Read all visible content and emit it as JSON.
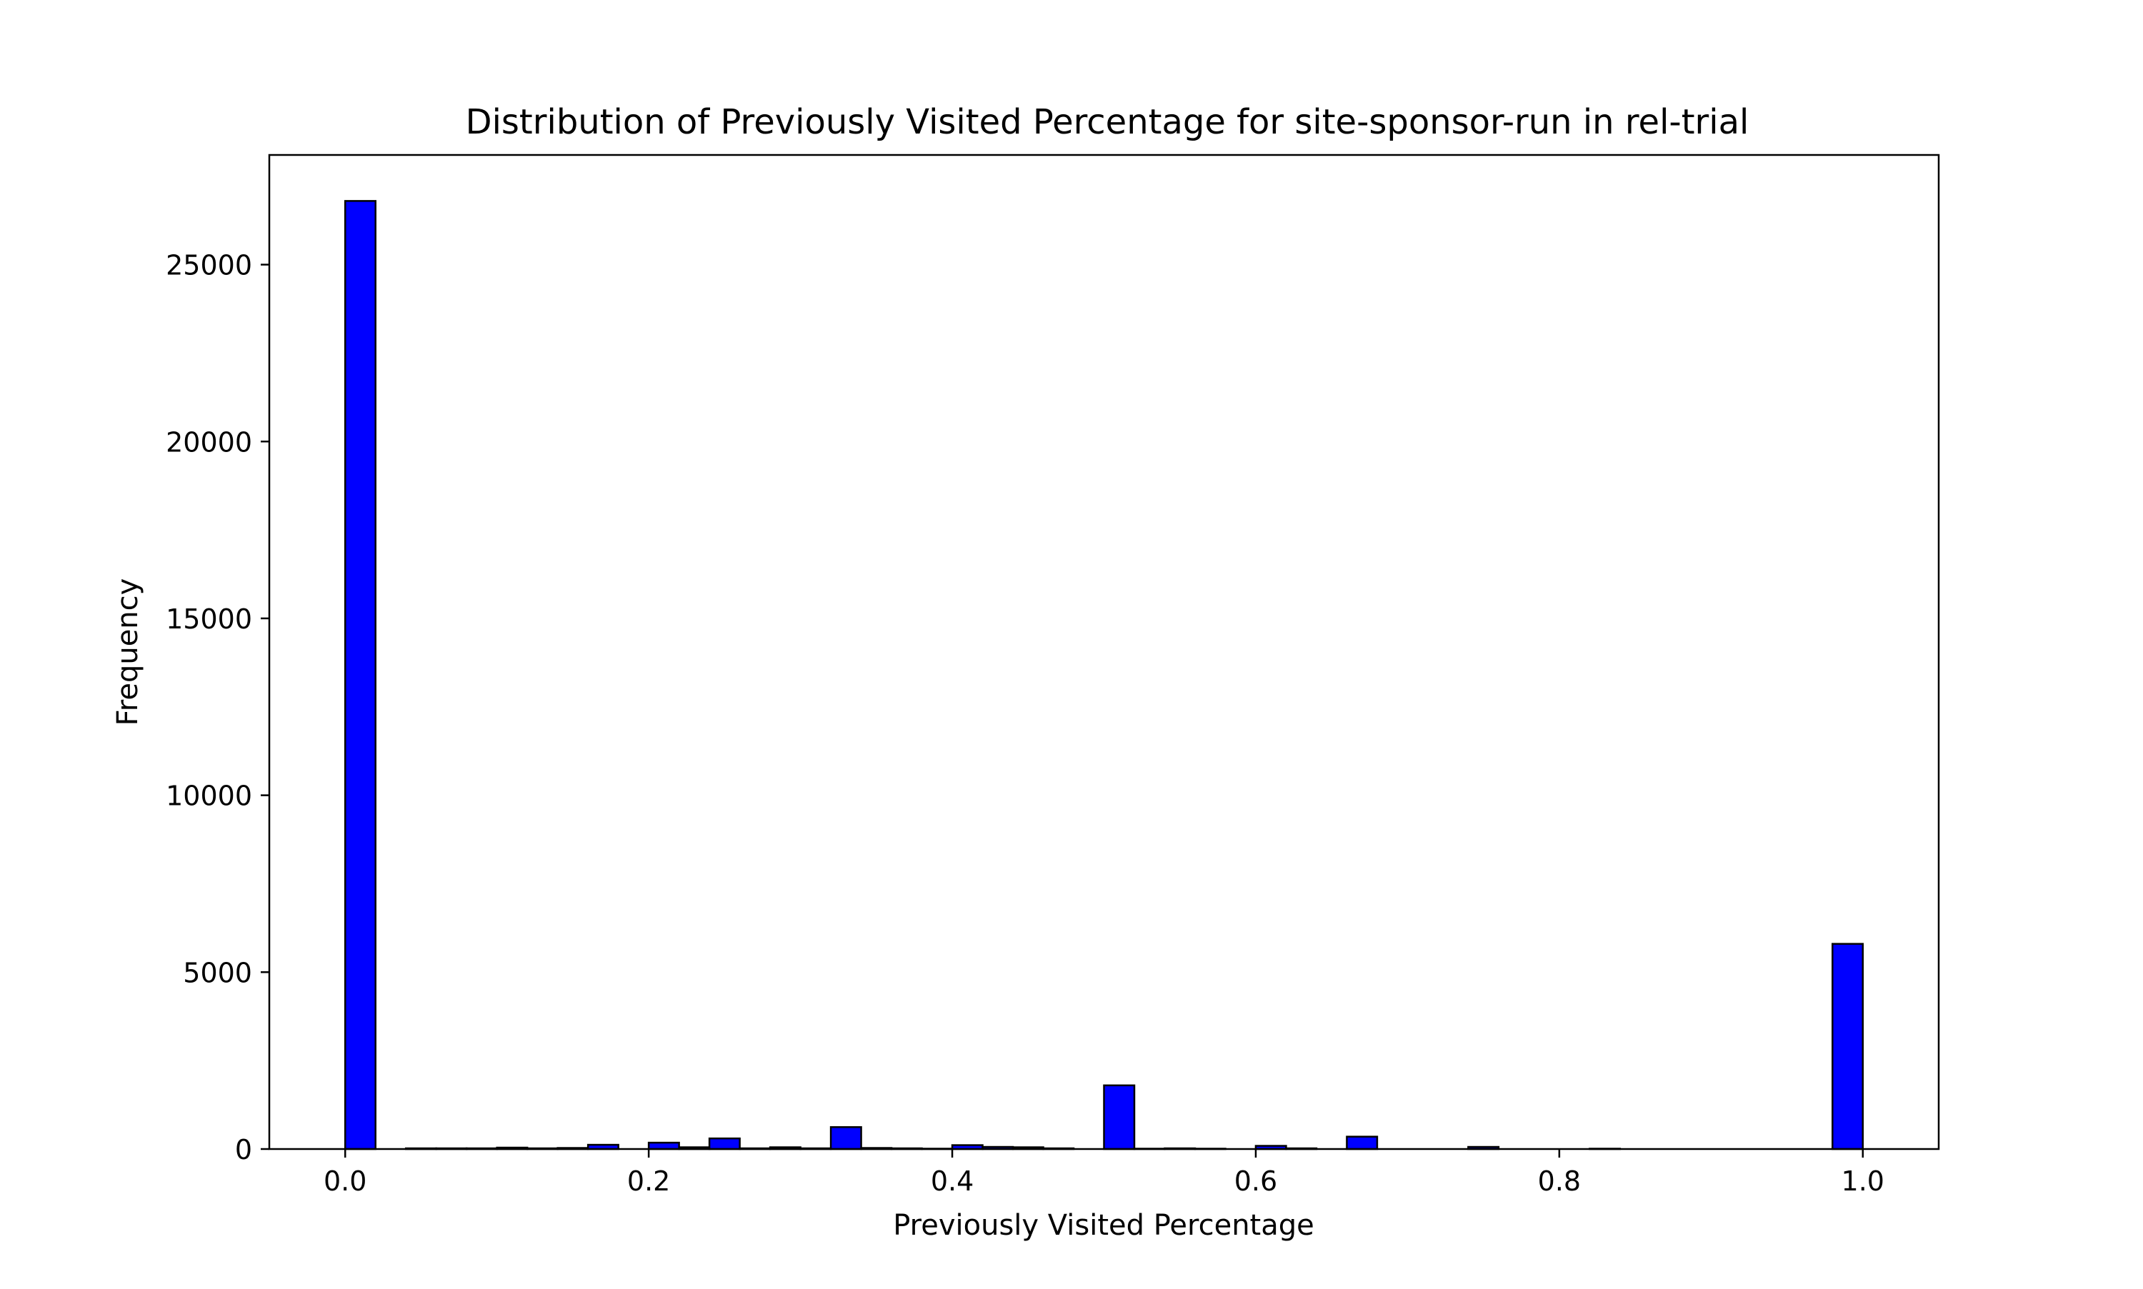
{
  "chart_data": {
    "type": "bar",
    "title": "Distribution of Previously Visited Percentage for site-sponsor-run in rel-trial",
    "xlabel": "Previously Visited Percentage",
    "ylabel": "Frequency",
    "xlim": [
      -0.05,
      1.05
    ],
    "ylim": [
      0,
      28100
    ],
    "xticks": [
      0.0,
      0.2,
      0.4,
      0.6,
      0.8,
      1.0
    ],
    "xtick_labels": [
      "0.0",
      "0.2",
      "0.4",
      "0.6",
      "0.8",
      "1.0"
    ],
    "yticks": [
      0,
      5000,
      10000,
      15000,
      20000,
      25000
    ],
    "ytick_labels": [
      "0",
      "5000",
      "10000",
      "15000",
      "20000",
      "25000"
    ],
    "bin_range": [
      0,
      1
    ],
    "bins": 50,
    "counts": [
      26800,
      0,
      20,
      20,
      20,
      40,
      20,
      30,
      120,
      0,
      180,
      50,
      300,
      20,
      50,
      20,
      620,
      30,
      20,
      10,
      110,
      60,
      50,
      20,
      0,
      1800,
      10,
      20,
      10,
      0,
      90,
      20,
      0,
      350,
      0,
      0,
      0,
      60,
      0,
      0,
      0,
      10,
      0,
      0,
      0,
      0,
      0,
      0,
      0,
      5800
    ],
    "bar_color": "#0000ff",
    "edge_color": "#000000",
    "grid": false,
    "legend": "none"
  }
}
